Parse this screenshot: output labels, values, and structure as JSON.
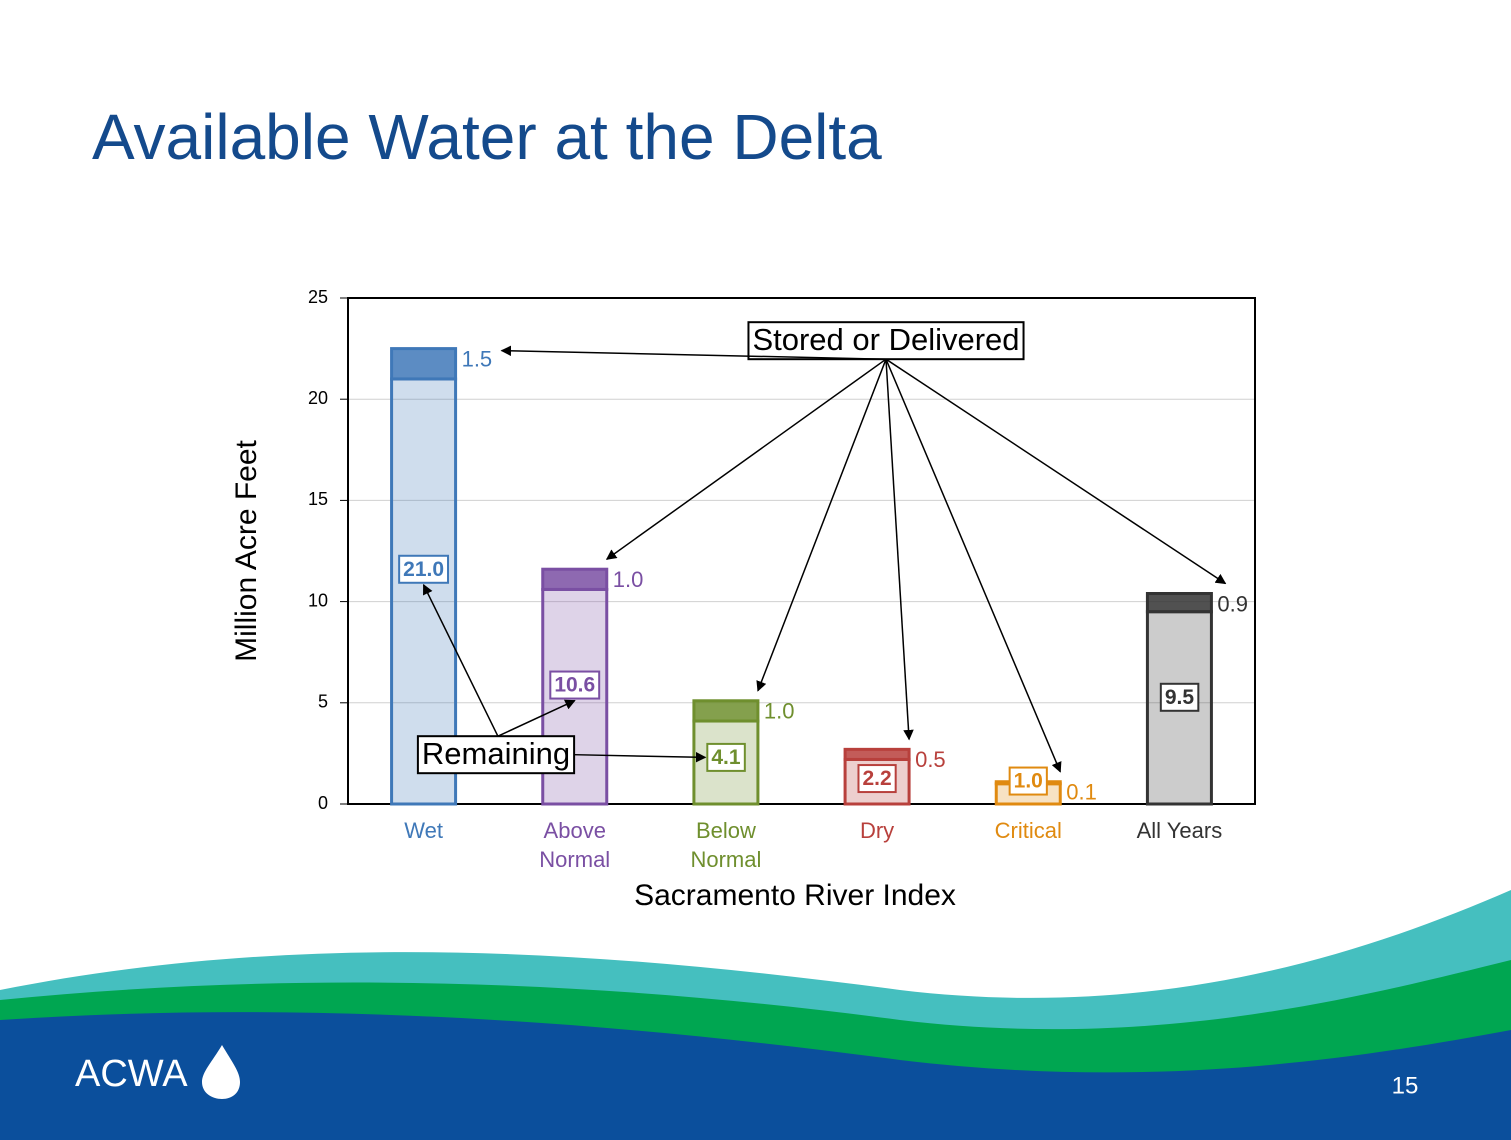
{
  "title": "Available Water at the Delta",
  "page_number": "15",
  "logo": "ACWA",
  "chart_data": {
    "type": "stacked-bar",
    "categories": [
      "Wet",
      "Above Normal",
      "Below Normal",
      "Dry",
      "Critical",
      "All Years"
    ],
    "category_colors": [
      "#3f78b8",
      "#7a4fa3",
      "#6f8f2e",
      "#b8403c",
      "#e08a10",
      "#333333"
    ],
    "series": [
      {
        "name": "Remaining",
        "values": [
          21.0,
          10.6,
          4.1,
          2.2,
          1.0,
          9.5
        ],
        "value_labels": [
          "21.0",
          "10.6",
          "4.1",
          "2.2",
          "1.0",
          "9.5"
        ]
      },
      {
        "name": "Stored or Delivered",
        "values": [
          1.5,
          1.0,
          1.0,
          0.5,
          0.1,
          0.9
        ],
        "value_labels": [
          "1.5",
          "1.0",
          "1.0",
          "0.5",
          "0.1",
          "0.9"
        ]
      }
    ],
    "y_label": "Million Acre Feet",
    "x_label": "Sacramento River Index",
    "ylim": [
      0,
      25
    ],
    "yticks": [
      0,
      5,
      10,
      15,
      20,
      25
    ],
    "grid": true
  }
}
